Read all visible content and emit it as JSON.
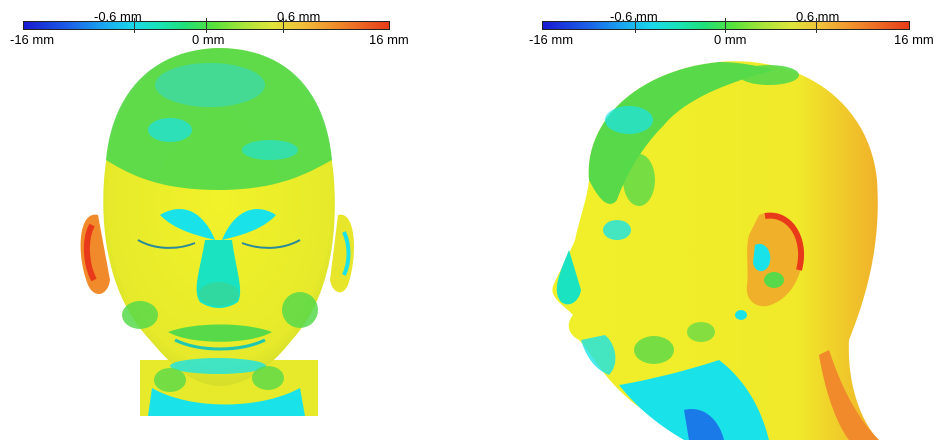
{
  "left_panel": {
    "scale": {
      "top_labels": [
        "-0.6 mm",
        "0.6 mm"
      ],
      "bottom_labels": [
        "-16 mm",
        "0 mm",
        "16 mm"
      ]
    },
    "view": "frontal head surface deviation map"
  },
  "right_panel": {
    "scale": {
      "top_labels": [
        "-0.6 mm",
        "0.6 mm"
      ],
      "bottom_labels": [
        "-16 mm",
        "0 mm",
        "16 mm"
      ]
    },
    "view": "lateral head surface deviation map"
  },
  "colors": {
    "deep_negative": "#1a1ad0",
    "near_zero_negative": "#19e3e8",
    "near_zero": "#3fd94a",
    "near_zero_positive": "#f0f02a",
    "deep_positive": "#e82a1a"
  }
}
